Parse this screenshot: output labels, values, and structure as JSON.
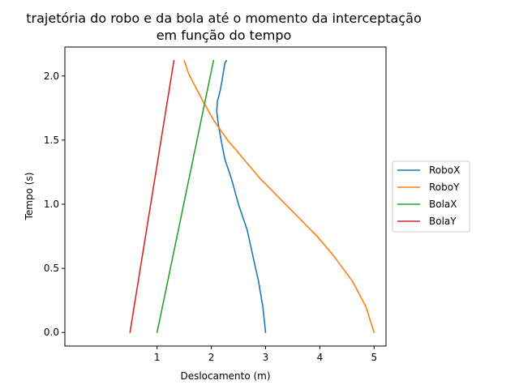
{
  "chart_data": {
    "type": "line",
    "title_line1": "trajetória do robo e da bola até o momento da interceptação",
    "title_line2": "em função do tempo",
    "xlabel": "Deslocamento (m)",
    "ylabel": "Tempo (s)",
    "xlim": [
      -0.7,
      5.22
    ],
    "ylim": [
      -0.106,
      2.226
    ],
    "xticks": [
      1,
      2,
      3,
      4,
      5
    ],
    "xtick_labels": [
      "1",
      "2",
      "3",
      "4",
      "5"
    ],
    "yticks": [
      0.0,
      0.5,
      1.0,
      1.5,
      2.0
    ],
    "ytick_labels": [
      "0.0",
      "0.5",
      "1.0",
      "1.5",
      "2.0"
    ],
    "grid": false,
    "legend_placement": "outside-right",
    "series": [
      {
        "name": "RoboX",
        "color": "#1f77b4",
        "points": [
          [
            3.0,
            0.0
          ],
          [
            2.95,
            0.2
          ],
          [
            2.87,
            0.4
          ],
          [
            2.79,
            0.55
          ],
          [
            2.66,
            0.8
          ],
          [
            2.5,
            1.0
          ],
          [
            2.37,
            1.2
          ],
          [
            2.25,
            1.35
          ],
          [
            2.18,
            1.5
          ],
          [
            2.13,
            1.62
          ],
          [
            2.1,
            1.72
          ],
          [
            2.11,
            1.8
          ],
          [
            2.16,
            1.88
          ],
          [
            2.2,
            1.97
          ],
          [
            2.23,
            2.05
          ],
          [
            2.25,
            2.1
          ],
          [
            2.28,
            2.12
          ]
        ]
      },
      {
        "name": "RoboY",
        "color": "#ff7f0e",
        "points": [
          [
            5.0,
            0.0
          ],
          [
            4.85,
            0.2
          ],
          [
            4.6,
            0.4
          ],
          [
            4.25,
            0.6
          ],
          [
            3.95,
            0.75
          ],
          [
            3.6,
            0.9
          ],
          [
            3.25,
            1.05
          ],
          [
            2.9,
            1.2
          ],
          [
            2.6,
            1.35
          ],
          [
            2.3,
            1.5
          ],
          [
            2.05,
            1.65
          ],
          [
            1.85,
            1.8
          ],
          [
            1.7,
            1.92
          ],
          [
            1.58,
            2.02
          ],
          [
            1.5,
            2.12
          ]
        ]
      },
      {
        "name": "BolaX",
        "color": "#2ca02c",
        "points": [
          [
            1.0,
            0.0
          ],
          [
            2.04,
            2.12
          ]
        ]
      },
      {
        "name": "BolaY",
        "color": "#d62728",
        "points": [
          [
            0.5,
            0.0
          ],
          [
            1.31,
            2.12
          ]
        ]
      }
    ]
  }
}
